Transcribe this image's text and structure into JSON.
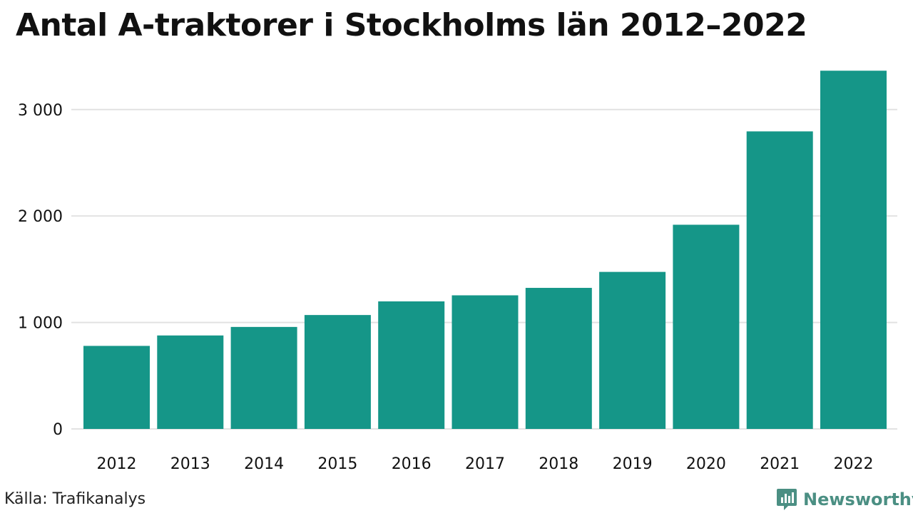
{
  "colors": {
    "bar": "#159688",
    "grid": "#e2e2e2",
    "text": "#111111",
    "brand": "#4b8f83"
  },
  "chart_data": {
    "type": "bar",
    "title": "Antal A-traktorer i Stockholms län 2012–2022",
    "xlabel": "",
    "ylabel": "",
    "categories": [
      "2012",
      "2013",
      "2014",
      "2015",
      "2016",
      "2017",
      "2018",
      "2019",
      "2020",
      "2021",
      "2022"
    ],
    "values": [
      780,
      878,
      958,
      1070,
      1198,
      1255,
      1325,
      1475,
      1918,
      2795,
      3365
    ],
    "ylim": [
      0,
      3400
    ],
    "yticks": [
      0,
      1000,
      2000,
      3000
    ],
    "ytick_labels": [
      "0",
      "1 000",
      "2 000",
      "3 000"
    ],
    "grid": true,
    "legend": "none"
  },
  "footer": {
    "source": "Källa: Trafikanalys",
    "brand": "Newsworthy",
    "brand_icon": "newsworthy-logo-icon"
  }
}
